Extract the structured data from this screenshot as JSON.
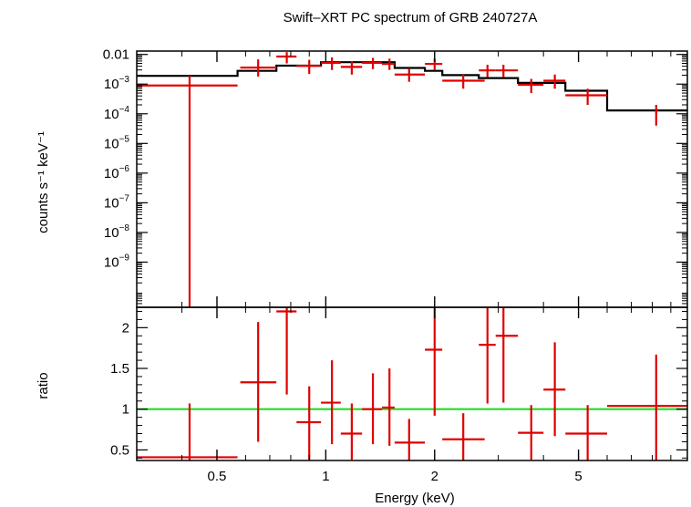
{
  "chart_data": {
    "type": "scatter",
    "title": "Swift–XRT PC spectrum of GRB 240727A",
    "xlabel": "Energy (keV)",
    "xscale": "log",
    "xlim": [
      0.3,
      10
    ],
    "x_ticks": [
      {
        "value": 0.5,
        "label": "0.5"
      },
      {
        "value": 1,
        "label": "1"
      },
      {
        "value": 2,
        "label": "2"
      },
      {
        "value": 5,
        "label": "5"
      }
    ],
    "colors": {
      "data": "#e00000",
      "model": "#000000",
      "unity": "#22dd22",
      "frame": "#000000"
    },
    "panels": [
      {
        "name": "spectrum",
        "ylabel": "counts s⁻¹ keV⁻¹",
        "yscale": "log",
        "ylim": [
          3e-11,
          0.013
        ],
        "y_ticks": [
          {
            "value": 0.01,
            "label": "0.01"
          },
          {
            "value": 0.001,
            "label": "10",
            "sup": "−3"
          },
          {
            "value": 0.0001,
            "label": "10",
            "sup": "−4"
          },
          {
            "value": 1e-05,
            "label": "10",
            "sup": "−5"
          },
          {
            "value": 1e-06,
            "label": "10",
            "sup": "−6"
          },
          {
            "value": 1e-07,
            "label": "10",
            "sup": "−7"
          },
          {
            "value": 1e-08,
            "label": "10",
            "sup": "−8"
          },
          {
            "value": 1e-09,
            "label": "10",
            "sup": "−9"
          }
        ],
        "series": [
          {
            "kind": "data",
            "points": [
              {
                "x_lo": 0.3,
                "x_hi": 0.57,
                "x": 0.42,
                "y": 0.0009,
                "y_lo": 3e-11,
                "y_hi": 0.0019
              },
              {
                "x_lo": 0.58,
                "x_hi": 0.73,
                "x": 0.65,
                "y": 0.0036,
                "y_lo": 0.0018,
                "y_hi": 0.0068
              },
              {
                "x_lo": 0.73,
                "x_hi": 0.83,
                "x": 0.78,
                "y": 0.0085,
                "y_lo": 0.005,
                "y_hi": 0.012
              },
              {
                "x_lo": 0.83,
                "x_hi": 0.97,
                "x": 0.9,
                "y": 0.0041,
                "y_lo": 0.0022,
                "y_hi": 0.0066
              },
              {
                "x_lo": 0.97,
                "x_hi": 1.1,
                "x": 1.04,
                "y": 0.0052,
                "y_lo": 0.003,
                "y_hi": 0.008
              },
              {
                "x_lo": 1.1,
                "x_hi": 1.26,
                "x": 1.18,
                "y": 0.0038,
                "y_lo": 0.0021,
                "y_hi": 0.0058
              },
              {
                "x_lo": 1.26,
                "x_hi": 1.43,
                "x": 1.35,
                "y": 0.0052,
                "y_lo": 0.0032,
                "y_hi": 0.0077
              },
              {
                "x_lo": 1.43,
                "x_hi": 1.55,
                "x": 1.5,
                "y": 0.0048,
                "y_lo": 0.003,
                "y_hi": 0.0072
              },
              {
                "x_lo": 1.55,
                "x_hi": 1.88,
                "x": 1.7,
                "y": 0.0021,
                "y_lo": 0.0012,
                "y_hi": 0.0034
              },
              {
                "x_lo": 1.88,
                "x_hi": 2.1,
                "x": 2.0,
                "y": 0.0048,
                "y_lo": 0.003,
                "y_hi": 0.0072
              },
              {
                "x_lo": 2.1,
                "x_hi": 2.75,
                "x": 2.4,
                "y": 0.0013,
                "y_lo": 0.0007,
                "y_hi": 0.0021
              },
              {
                "x_lo": 2.65,
                "x_hi": 2.95,
                "x": 2.8,
                "y": 0.0029,
                "y_lo": 0.0017,
                "y_hi": 0.0045
              },
              {
                "x_lo": 2.95,
                "x_hi": 3.4,
                "x": 3.1,
                "y": 0.0029,
                "y_lo": 0.0017,
                "y_hi": 0.0045
              },
              {
                "x_lo": 3.4,
                "x_hi": 4.0,
                "x": 3.7,
                "y": 0.00095,
                "y_lo": 0.0005,
                "y_hi": 0.0015
              },
              {
                "x_lo": 4.0,
                "x_hi": 4.6,
                "x": 4.3,
                "y": 0.0013,
                "y_lo": 0.0007,
                "y_hi": 0.0021
              },
              {
                "x_lo": 4.6,
                "x_hi": 6.0,
                "x": 5.3,
                "y": 0.00042,
                "y_lo": 0.0002,
                "y_hi": 0.0007
              },
              {
                "x_lo": 8.2,
                "x_hi": 8.2,
                "x": 8.2,
                "y": 0.00011,
                "y_lo": 4e-05,
                "y_hi": 0.0002
              }
            ]
          },
          {
            "kind": "model",
            "steps": [
              {
                "x_lo": 0.3,
                "x_hi": 0.57,
                "y": 0.0019
              },
              {
                "x_lo": 0.57,
                "x_hi": 0.73,
                "y": 0.0028
              },
              {
                "x_lo": 0.73,
                "x_hi": 0.97,
                "y": 0.0042
              },
              {
                "x_lo": 0.97,
                "x_hi": 1.55,
                "y": 0.0055
              },
              {
                "x_lo": 1.55,
                "x_hi": 1.88,
                "y": 0.0035
              },
              {
                "x_lo": 1.88,
                "x_hi": 2.1,
                "y": 0.0028
              },
              {
                "x_lo": 2.1,
                "x_hi": 2.65,
                "y": 0.002
              },
              {
                "x_lo": 2.65,
                "x_hi": 3.4,
                "y": 0.0016
              },
              {
                "x_lo": 3.4,
                "x_hi": 4.6,
                "y": 0.0011
              },
              {
                "x_lo": 4.6,
                "x_hi": 6.0,
                "y": 0.0006
              },
              {
                "x_lo": 6.0,
                "x_hi": 10.0,
                "y": 0.00013
              }
            ]
          }
        ]
      },
      {
        "name": "ratio",
        "ylabel": "ratio",
        "yscale": "linear",
        "ylim": [
          0.37,
          2.25
        ],
        "y_ticks": [
          {
            "value": 0.5,
            "label": "0.5"
          },
          {
            "value": 1,
            "label": "1"
          },
          {
            "value": 1.5,
            "label": "1.5"
          },
          {
            "value": 2,
            "label": "2"
          }
        ],
        "reference_line": 1,
        "series": [
          {
            "kind": "data",
            "points": [
              {
                "x_lo": 0.3,
                "x_hi": 0.57,
                "x": 0.42,
                "y": 0.41,
                "y_lo": 0.37,
                "y_hi": 1.07
              },
              {
                "x_lo": 0.58,
                "x_hi": 0.73,
                "x": 0.65,
                "y": 1.33,
                "y_lo": 0.6,
                "y_hi": 2.07
              },
              {
                "x_lo": 0.73,
                "x_hi": 0.83,
                "x": 0.78,
                "y": 2.2,
                "y_lo": 1.18,
                "y_hi": 2.25
              },
              {
                "x_lo": 0.83,
                "x_hi": 0.97,
                "x": 0.9,
                "y": 0.84,
                "y_lo": 0.38,
                "y_hi": 1.28
              },
              {
                "x_lo": 0.97,
                "x_hi": 1.1,
                "x": 1.04,
                "y": 1.08,
                "y_lo": 0.57,
                "y_hi": 1.6
              },
              {
                "x_lo": 1.1,
                "x_hi": 1.26,
                "x": 1.18,
                "y": 0.7,
                "y_lo": 0.38,
                "y_hi": 1.07
              },
              {
                "x_lo": 1.26,
                "x_hi": 1.43,
                "x": 1.35,
                "y": 1.0,
                "y_lo": 0.57,
                "y_hi": 1.44
              },
              {
                "x_lo": 1.43,
                "x_hi": 1.55,
                "x": 1.5,
                "y": 1.02,
                "y_lo": 0.55,
                "y_hi": 1.5
              },
              {
                "x_lo": 1.55,
                "x_hi": 1.88,
                "x": 1.7,
                "y": 0.59,
                "y_lo": 0.37,
                "y_hi": 0.88
              },
              {
                "x_lo": 1.88,
                "x_hi": 2.1,
                "x": 2.0,
                "y": 1.73,
                "y_lo": 0.92,
                "y_hi": 2.25
              },
              {
                "x_lo": 2.1,
                "x_hi": 2.75,
                "x": 2.4,
                "y": 0.63,
                "y_lo": 0.37,
                "y_hi": 0.95
              },
              {
                "x_lo": 2.65,
                "x_hi": 2.95,
                "x": 2.8,
                "y": 1.79,
                "y_lo": 1.07,
                "y_hi": 2.25
              },
              {
                "x_lo": 2.95,
                "x_hi": 3.4,
                "x": 3.1,
                "y": 1.9,
                "y_lo": 1.08,
                "y_hi": 2.25
              },
              {
                "x_lo": 3.4,
                "x_hi": 4.0,
                "x": 3.7,
                "y": 0.71,
                "y_lo": 0.38,
                "y_hi": 1.05
              },
              {
                "x_lo": 4.0,
                "x_hi": 4.6,
                "x": 4.3,
                "y": 1.24,
                "y_lo": 0.67,
                "y_hi": 1.82
              },
              {
                "x_lo": 4.6,
                "x_hi": 6.0,
                "x": 5.3,
                "y": 0.7,
                "y_lo": 0.37,
                "y_hi": 1.05
              },
              {
                "x_lo": 6.0,
                "x_hi": 10.0,
                "x": 8.2,
                "y": 1.04,
                "y_lo": 0.37,
                "y_hi": 1.67
              }
            ]
          }
        ]
      }
    ]
  }
}
